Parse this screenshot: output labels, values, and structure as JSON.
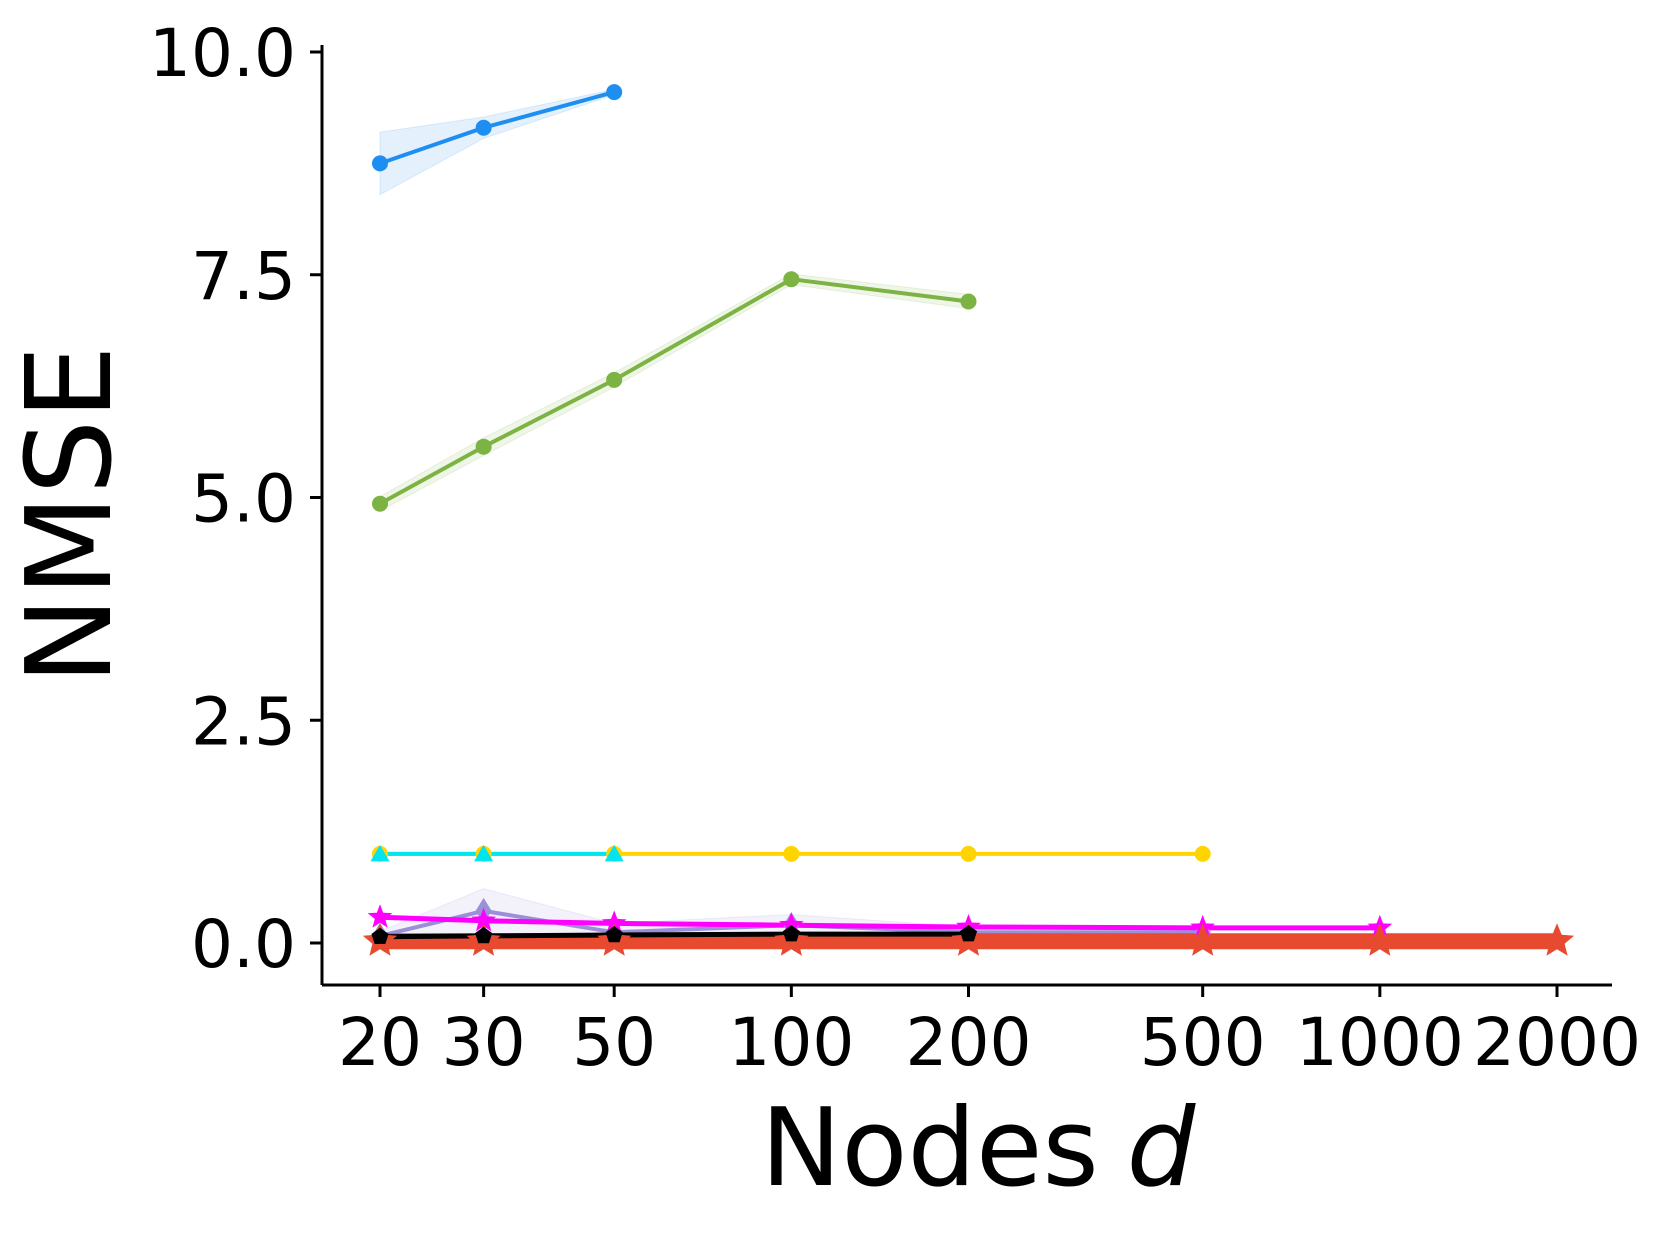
{
  "chart_data": {
    "type": "line",
    "xlabel": "Nodes",
    "xlabel_var": "d",
    "ylabel": "NMSE",
    "x_scale": "log",
    "x_ticks": [
      20,
      30,
      50,
      100,
      200,
      500,
      1000,
      2000
    ],
    "x_tick_labels": [
      "20",
      "30",
      "50",
      "100",
      "200",
      "500",
      "1000",
      "2000"
    ],
    "y_ticks": [
      0,
      2.5,
      5,
      7.5,
      10
    ],
    "y_tick_labels": [
      "0.0",
      "2.5",
      "5.0",
      "7.5",
      "10.0"
    ],
    "ylim": [
      -0.45,
      10.1
    ],
    "grid": false,
    "series": [
      {
        "color": "#1f8ef1",
        "marker": "circle",
        "x": [
          20,
          30,
          50
        ],
        "y": [
          8.75,
          9.15,
          9.55
        ],
        "band": [
          0.35,
          0.12,
          0.03
        ],
        "width": 4
      },
      {
        "color": "#7cb342",
        "marker": "circle",
        "x": [
          20,
          30,
          50,
          100,
          200
        ],
        "y": [
          4.93,
          5.57,
          6.32,
          7.45,
          7.2
        ],
        "band": [
          0.08,
          0.1,
          0.08,
          0.06,
          0.08
        ],
        "width": 4
      },
      {
        "color": "#ffd400",
        "marker": "circle",
        "x": [
          20,
          30,
          50,
          100,
          200,
          500
        ],
        "y": [
          1.0,
          1.0,
          1.0,
          1.0,
          1.0,
          1.0
        ],
        "band": [
          0,
          0,
          0,
          0,
          0,
          0
        ],
        "width": 4
      },
      {
        "color": "#00e5ee",
        "marker": "triangle",
        "x": [
          20,
          30,
          50
        ],
        "y": [
          1.0,
          1.0,
          1.0
        ],
        "band": [
          0,
          0,
          0
        ],
        "width": 4
      },
      {
        "color": "#9b8fd9",
        "marker": "diamond",
        "x": [
          20,
          30,
          50,
          100,
          200,
          500
        ],
        "y": [
          0.08,
          0.36,
          0.12,
          0.2,
          0.12,
          0.12
        ],
        "band": [
          0.05,
          0.25,
          0.1,
          0.12,
          0.06,
          0.05
        ],
        "width": 4
      },
      {
        "color": "#ff00ff",
        "marker": "star",
        "x": [
          20,
          30,
          50,
          100,
          200,
          500,
          1000
        ],
        "y": [
          0.29,
          0.25,
          0.22,
          0.2,
          0.18,
          0.17,
          0.17
        ],
        "band": [
          0,
          0,
          0,
          0,
          0,
          0,
          0
        ],
        "width": 5
      },
      {
        "color": "#e84a30",
        "marker": "star",
        "x": [
          20,
          30,
          50,
          100,
          200,
          500,
          1000,
          2000
        ],
        "y": [
          0.02,
          0.02,
          0.02,
          0.02,
          0.02,
          0.02,
          0.02,
          0.02
        ],
        "band": [
          0,
          0,
          0,
          0,
          0,
          0,
          0,
          0
        ],
        "width": 16
      },
      {
        "color": "#000000",
        "marker": "pentagon",
        "x": [
          20,
          30,
          50,
          100,
          200
        ],
        "y": [
          0.07,
          0.08,
          0.09,
          0.1,
          0.1
        ],
        "band": [
          0,
          0,
          0,
          0,
          0
        ],
        "width": 5
      }
    ]
  }
}
